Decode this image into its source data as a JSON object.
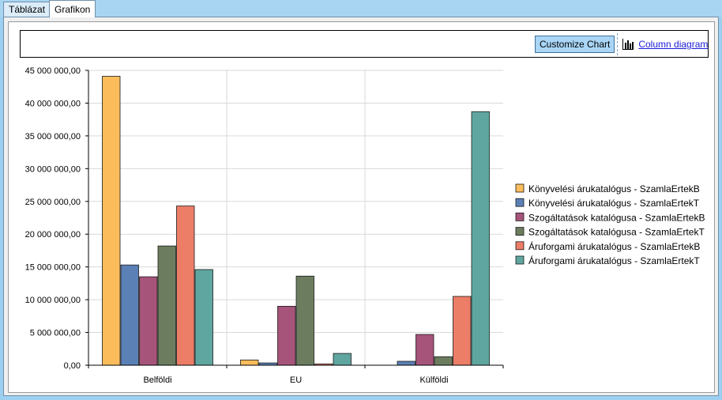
{
  "tabs": [
    {
      "label": "Táblázat",
      "active": false
    },
    {
      "label": "Grafikon",
      "active": true
    }
  ],
  "toolbar": {
    "customize_label": "Customize Chart",
    "column_type_label": "Column diagram",
    "column_type_icon": "bar-chart-icon"
  },
  "colors": {
    "window_background": "#9dcff0",
    "button_fill": "#a9d6f7",
    "link": "#1a1ad6"
  },
  "chart_data": {
    "type": "bar",
    "categories": [
      "Belföldi",
      "EU",
      "Külföldi"
    ],
    "series": [
      {
        "name": "Könyvelési árukatalógus - SzamlaErtekB",
        "color": "#fbbd5c",
        "values": [
          44100000,
          800000,
          0
        ]
      },
      {
        "name": "Könyvelési árukatalógus - SzamlaErtekT",
        "color": "#5b80b6",
        "values": [
          15300000,
          350000,
          600000
        ]
      },
      {
        "name": "Szogáltatások katalógusa - SzamlaErtekB",
        "color": "#a6547a",
        "values": [
          13500000,
          9000000,
          4700000
        ]
      },
      {
        "name": "Szogáltatások katalógusa - SzamlaErtekT",
        "color": "#6b7d5e",
        "values": [
          18200000,
          13600000,
          1300000
        ]
      },
      {
        "name": "Áruforgami árukatalógus - SzamlaErtekB",
        "color": "#ec7d67",
        "values": [
          24300000,
          200000,
          10500000
        ]
      },
      {
        "name": "Áruforgami árukatalógus - SzamlaErtekT",
        "color": "#5fa6a0",
        "values": [
          14600000,
          1800000,
          38700000
        ]
      }
    ],
    "y_ticks": [
      "0,00",
      "5 000 000,00",
      "10 000 000,00",
      "15 000 000,00",
      "20 000 000,00",
      "25 000 000,00",
      "30 000 000,00",
      "35 000 000,00",
      "40 000 000,00",
      "45 000 000,00"
    ],
    "ylim": [
      0,
      45000000
    ],
    "grid": true,
    "legend": "right"
  }
}
